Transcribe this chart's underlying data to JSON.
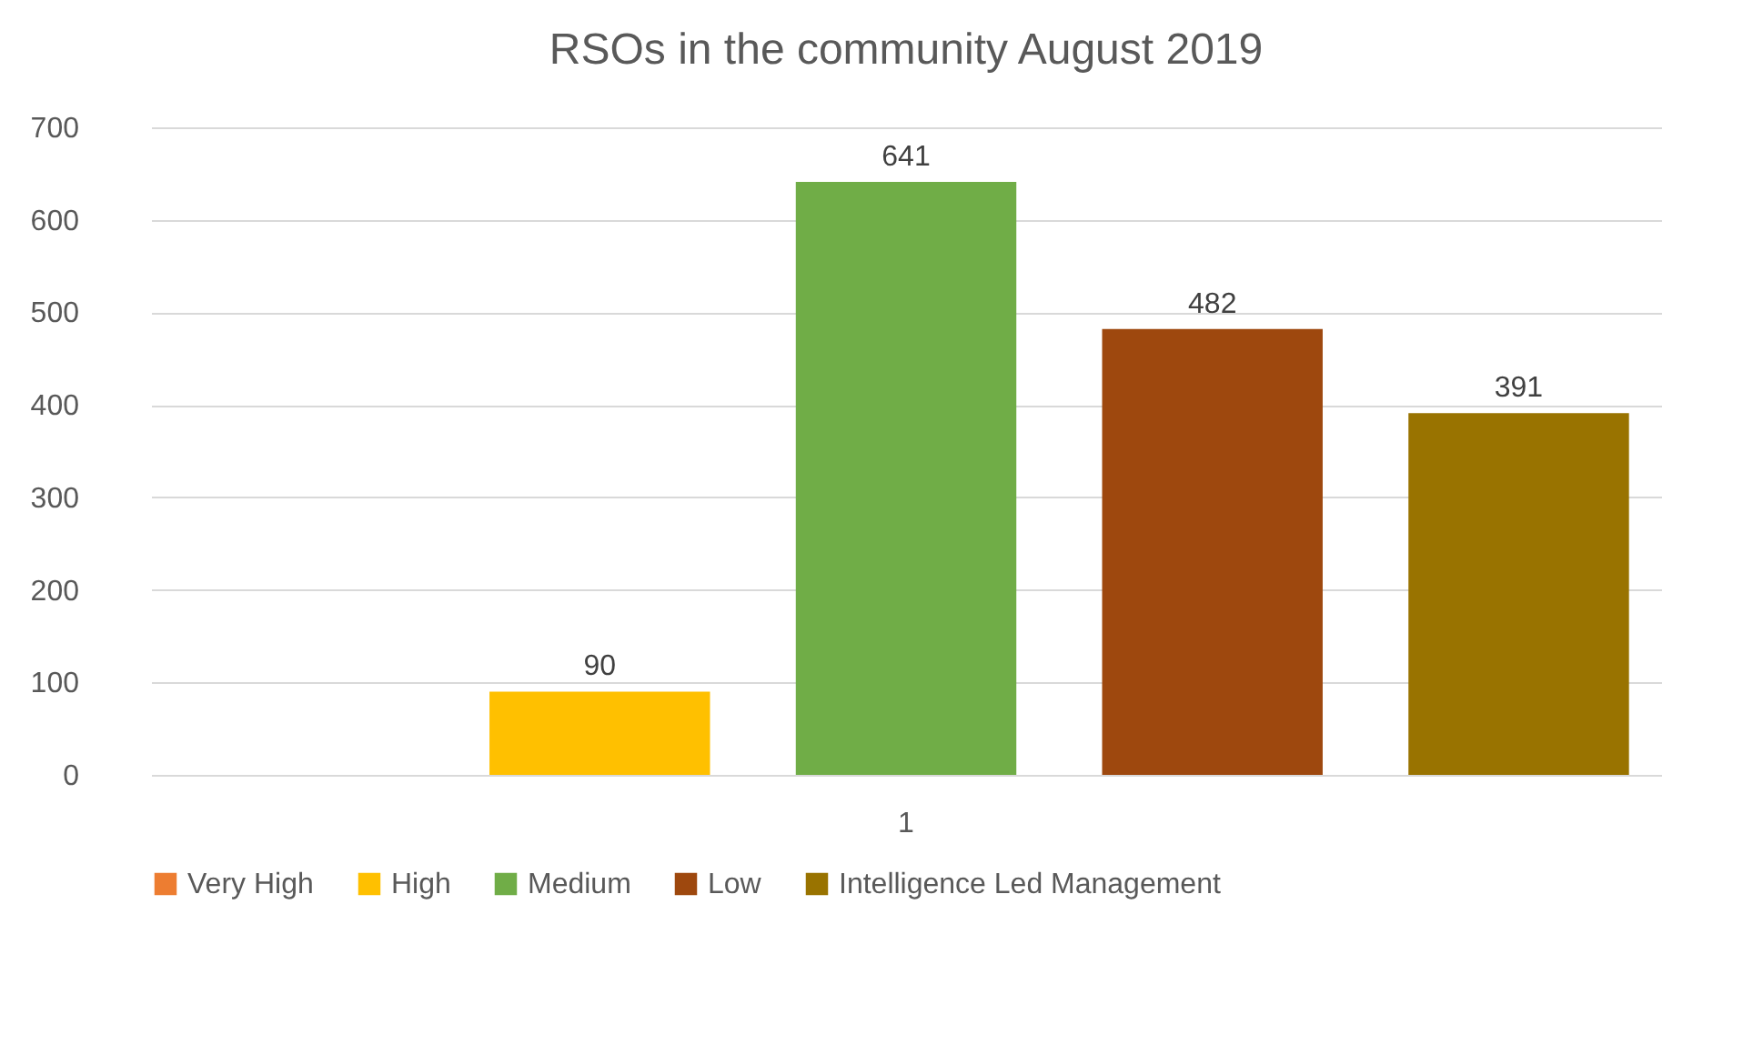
{
  "chart_data": {
    "type": "bar",
    "title": "RSOs in the community August 2019",
    "categories": [
      "1"
    ],
    "series": [
      {
        "name": "Very High",
        "color": "#ed7d31",
        "values": [
          null
        ]
      },
      {
        "name": "High",
        "color": "#ffc000",
        "values": [
          90
        ]
      },
      {
        "name": "Medium",
        "color": "#70ad47",
        "values": [
          641
        ]
      },
      {
        "name": "Low",
        "color": "#9e480e",
        "values": [
          482
        ]
      },
      {
        "name": "Intelligence Led Management",
        "color": "#997300",
        "values": [
          391
        ]
      }
    ],
    "ylim": [
      0,
      700
    ],
    "yticks": [
      0,
      100,
      200,
      300,
      400,
      500,
      600,
      700
    ],
    "grid": "y",
    "legend": "bottom",
    "data_labels": true
  }
}
